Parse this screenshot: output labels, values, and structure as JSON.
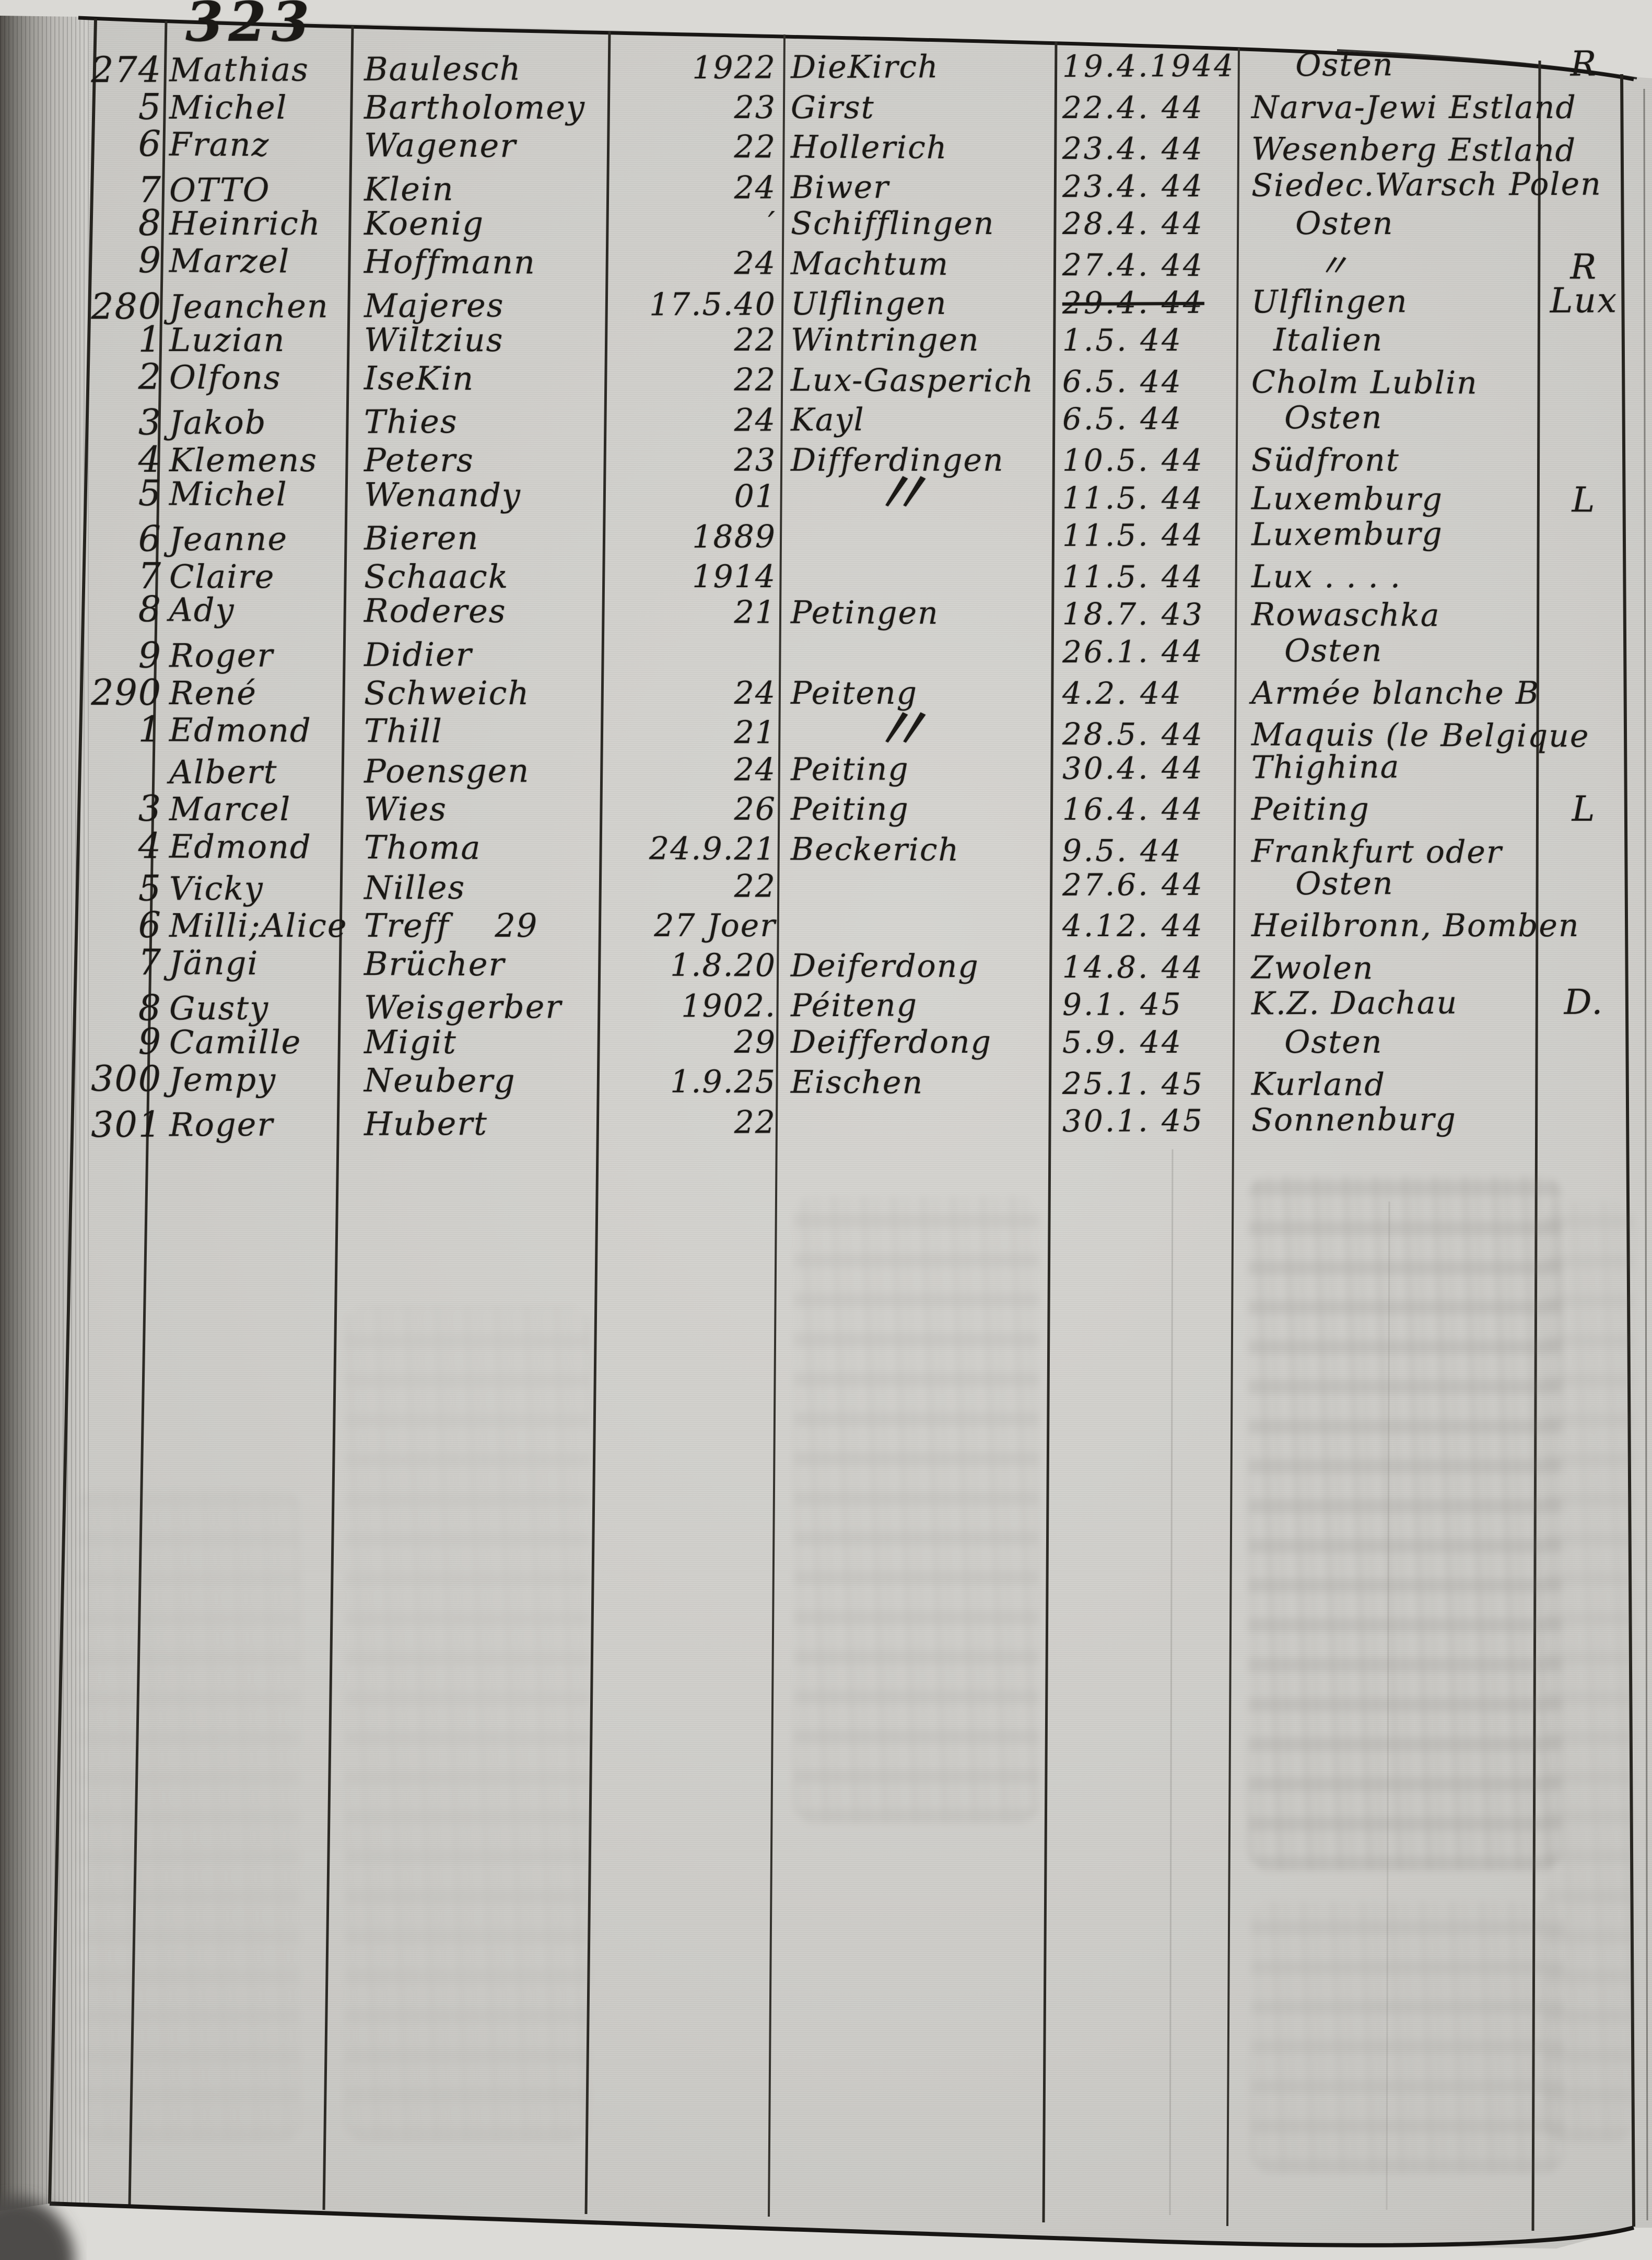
{
  "page": {
    "number": "323"
  },
  "register": {
    "rows": [
      {
        "no": "274",
        "first": "Mathias",
        "last": "Baulesch",
        "birth": "1922",
        "place": "DieKirch",
        "date": "19.4.1944",
        "dest": "    Osten",
        "letter": "R",
        "date_struck": false
      },
      {
        "no": "5",
        "first": "Michel",
        "last": "Bartholomey",
        "birth": "23",
        "place": "Girst",
        "date": "22.4. 44",
        "dest": "Narva-Jewi Estland",
        "letter": "",
        "date_struck": false
      },
      {
        "no": "6",
        "first": "Franz",
        "last": "Wagener",
        "birth": "22",
        "place": "Hollerich",
        "date": "23.4. 44",
        "dest": "Wesenberg Estland",
        "letter": "",
        "date_struck": false
      },
      {
        "no": "7",
        "first": "OTTO",
        "last": "Klein",
        "birth": "24",
        "place": "Biwer",
        "date": "23.4. 44",
        "dest": "Siedec.Warsch Polen",
        "letter": "",
        "date_struck": false
      },
      {
        "no": "8",
        "first": "Heinrich",
        "last": "Koenig",
        "birth": "′",
        "place": "Schifflingen",
        "date": "28.4. 44",
        "dest": "    Osten",
        "letter": "",
        "date_struck": false
      },
      {
        "no": "9",
        "first": "Marzel",
        "last": "Hoffmann",
        "birth": "24",
        "place": "Machtum",
        "date": "27.4. 44",
        "dest": "      〃",
        "letter": "R",
        "date_struck": false
      },
      {
        "no": "280",
        "first": "Jeanchen",
        "last": "Majeres",
        "birth": "17.5.40",
        "place": "Ulflingen",
        "date": "29.4. 44",
        "dest": "Ulflingen",
        "letter": "Lux",
        "date_struck": true
      },
      {
        "no": "1",
        "first": "Luzian",
        "last": "Wiltzius",
        "birth": "22",
        "place": "Wintringen",
        "date": "1.5. 44",
        "dest": "  Italien",
        "letter": "",
        "date_struck": false
      },
      {
        "no": "2",
        "first": "Olfons",
        "last": "IseKin",
        "birth": "22",
        "place": "Lux-Gasperich",
        "date": "6.5. 44",
        "dest": "Cholm Lublin",
        "letter": "",
        "date_struck": false
      },
      {
        "no": "3",
        "first": "Jakob",
        "last": "Thies",
        "birth": "24",
        "place": "Kayl",
        "date": "6.5. 44",
        "dest": "   Osten",
        "letter": "",
        "date_struck": false
      },
      {
        "no": "4",
        "first": "Klemens",
        "last": "Peters",
        "birth": "23",
        "place": "Differdingen",
        "date": "10.5. 44",
        "dest": "Südfront",
        "letter": "",
        "date_struck": false
      },
      {
        "no": "5",
        "first": "Michel",
        "last": "Wenandy",
        "birth": "01",
        "place": "〃",
        "date": "11.5. 44",
        "dest": "Luxemburg",
        "letter": "L",
        "date_struck": false
      },
      {
        "no": "6",
        "first": "Jeanne",
        "last": "Bieren",
        "birth": "1889",
        "place": "",
        "date": "11.5. 44",
        "dest": "Luxemburg",
        "letter": "",
        "date_struck": false
      },
      {
        "no": "7",
        "first": "Claire",
        "last": "Schaack",
        "birth": "1914",
        "place": "",
        "date": "11.5. 44",
        "dest": "Lux . . . .",
        "letter": "",
        "date_struck": false
      },
      {
        "no": "8",
        "first": "Ady",
        "last": "Roderes",
        "birth": "21",
        "place": "Petingen",
        "date": "18.7. 43",
        "dest": "Rowaschka",
        "letter": "",
        "date_struck": false
      },
      {
        "no": "9",
        "first": "Roger",
        "last": "Didier",
        "birth": "",
        "place": "",
        "date": "26.1. 44",
        "dest": "   Osten",
        "letter": "",
        "date_struck": false
      },
      {
        "no": "290",
        "first": "René",
        "last": "Schweich",
        "birth": "24",
        "place": "Peiteng",
        "date": "4.2. 44",
        "dest": "Armée blanche B",
        "letter": "",
        "date_struck": false
      },
      {
        "no": "1",
        "first": "Edmond",
        "last": "Thill",
        "birth": "21",
        "place": "〃",
        "date": "28.5. 44",
        "dest": "Maquis (le Belgique",
        "letter": "",
        "date_struck": false
      },
      {
        "no": "",
        "first": "Albert",
        "last": "Poensgen",
        "birth": "24",
        "place": "Peiting",
        "date": "30.4. 44",
        "dest": "Thighina",
        "letter": "",
        "date_struck": false
      },
      {
        "no": "3",
        "first": "Marcel",
        "last": "Wies",
        "birth": "26",
        "place": "Peiting",
        "date": "16.4. 44",
        "dest": "Peiting",
        "letter": "L",
        "date_struck": false
      },
      {
        "no": "4",
        "first": "Edmond",
        "last": "Thoma",
        "birth": "24.9.21",
        "place": "Beckerich",
        "date": "9.5. 44",
        "dest": "Frankfurt oder",
        "letter": "",
        "date_struck": false
      },
      {
        "no": "5",
        "first": "Vicky",
        "last": "Nilles",
        "birth": "22",
        "place": "",
        "date": "27.6. 44",
        "dest": "    Osten",
        "letter": "",
        "date_struck": false
      },
      {
        "no": "6",
        "first": "Milli;Alice",
        "last": "Treff    29",
        "birth": "27 Joer",
        "place": "",
        "date": "4.12. 44",
        "dest": "Heilbronn, Bomben",
        "letter": "",
        "date_struck": false
      },
      {
        "no": "7",
        "first": "Jängi",
        "last": "Brücher",
        "birth": "1.8.20",
        "place": "Deiferdong",
        "date": "14.8. 44",
        "dest": "Zwolen",
        "letter": "",
        "date_struck": false
      },
      {
        "no": "8",
        "first": "Gusty",
        "last": "Weisgerber",
        "birth": "1902.",
        "place": "Péiteng",
        "date": "9.1. 45",
        "dest": "K.Z. Dachau",
        "letter": "D.",
        "date_struck": false
      },
      {
        "no": "9",
        "first": "Camille",
        "last": "Migit",
        "birth": "29",
        "place": "Deifferdong",
        "date": "5.9. 44",
        "dest": "   Osten",
        "letter": "",
        "date_struck": false
      },
      {
        "no": "300",
        "first": "Jempy",
        "last": "Neuberg",
        "birth": "1.9.25",
        "place": "Eischen",
        "date": "25.1. 45",
        "dest": "Kurland",
        "letter": "",
        "date_struck": false
      },
      {
        "no": "301",
        "first": "Roger",
        "last": "Hubert",
        "birth": "22",
        "place": "",
        "date": "30.1. 45",
        "dest": "Sonnenburg",
        "letter": "",
        "date_struck": false
      }
    ]
  }
}
